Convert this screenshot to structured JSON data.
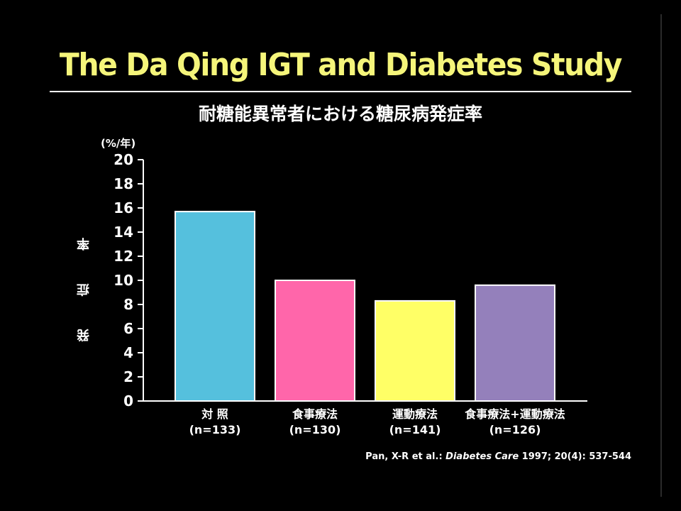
{
  "slide": {
    "title": "The Da Qing IGT and Diabetes Study",
    "subtitle": "耐糖能異常者における糖尿病発症率",
    "unit": "(%/年)",
    "ylabel": "発 症 率",
    "citation": {
      "authors": "Pan, X-R et al.: ",
      "journal": "Diabetes Care",
      "rest": " 1997; 20(4): 537-544"
    }
  },
  "chart_data": {
    "type": "bar",
    "categories": [
      "対 照",
      "食事療法",
      "運動療法",
      "食事療法+運動療法"
    ],
    "sublabels": [
      "(n=133)",
      "(n=130)",
      "(n=141)",
      "(n=126)"
    ],
    "values": [
      15.7,
      10.0,
      8.3,
      9.6
    ],
    "colors": [
      "#55c0dd",
      "#ff66aa",
      "#ffff66",
      "#9480bb"
    ],
    "ylim": [
      0,
      20
    ],
    "yticks": [
      0,
      2,
      4,
      6,
      8,
      10,
      12,
      14,
      16,
      18,
      20
    ],
    "title": "耐糖能異常者における糖尿病発症率",
    "ylabel": "発 症 率",
    "legend": "none",
    "grid": false
  }
}
